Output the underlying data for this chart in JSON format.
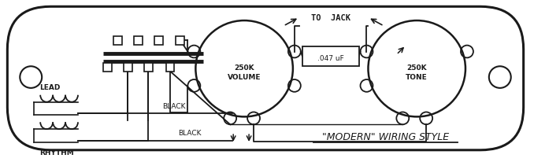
{
  "line_color": "#1a1a1a",
  "title": "\"MODERN\" WIRING STYLE",
  "vol_label": "250K\nVOLUME",
  "tone_label": "250K\nTONE",
  "cap_label": ".047 uF",
  "to_jack": "TO JACK",
  "lead_label": "LEAD",
  "rhythm_label": "RHYTHM",
  "black1": "BLACK",
  "black2": "BLACK",
  "figw": 6.78,
  "figh": 2.07,
  "dpi": 100
}
